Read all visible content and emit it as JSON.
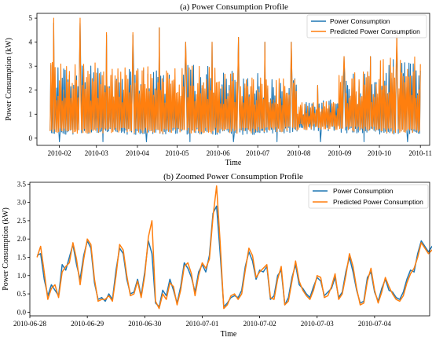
{
  "chart_data": [
    {
      "type": "line",
      "title": "(a) Power Consumption Profile",
      "xlabel": "Time",
      "ylabel": "Power Consumption (kW)",
      "x_range": [
        "2010-01-15",
        "2010-11-08"
      ],
      "ylim": [
        -0.3,
        5.2
      ],
      "yticks": [
        0,
        1,
        2,
        3,
        4,
        5
      ],
      "xticks": [
        "2010-02",
        "2010-03",
        "2010-04",
        "2010-05",
        "2010-06",
        "2010-07",
        "2010-08",
        "2010-09",
        "2010-10",
        "2010-11"
      ],
      "data_range": [
        "2010-01-25",
        "2010-11-01"
      ],
      "legend_position": "top-right",
      "grid": false,
      "series": [
        {
          "name": "Power Consumption",
          "color": "#1f77b4",
          "monthly_envelope": {
            "months": [
              "2010-02",
              "2010-03",
              "2010-04",
              "2010-05",
              "2010-06",
              "2010-07",
              "2010-08",
              "2010-09",
              "2010-10"
            ],
            "typical_min": [
              0.15,
              0.15,
              0.15,
              0.15,
              0.15,
              0.2,
              0.3,
              0.2,
              0.15
            ],
            "typical_max": [
              3.2,
              3.0,
              3.0,
              3.1,
              2.8,
              2.6,
              1.6,
              2.8,
              3.4
            ],
            "peak_max": [
              4.8,
              4.3,
              4.6,
              4.0,
              4.2,
              4.0,
              2.2,
              3.4,
              4.2
            ]
          }
        },
        {
          "name": "Predicted Power Consumption",
          "color": "#ff7f0e",
          "monthly_envelope": {
            "months": [
              "2010-02",
              "2010-03",
              "2010-04",
              "2010-05",
              "2010-06",
              "2010-07",
              "2010-08",
              "2010-09",
              "2010-10"
            ],
            "typical_min": [
              0.2,
              0.2,
              0.2,
              0.2,
              0.2,
              0.25,
              0.35,
              0.25,
              0.2
            ],
            "typical_max": [
              3.2,
              3.0,
              3.0,
              3.1,
              2.8,
              2.6,
              1.6,
              2.8,
              3.4
            ],
            "peak_max": [
              5.0,
              4.4,
              4.6,
              4.0,
              4.2,
              4.0,
              2.2,
              3.4,
              4.3
            ]
          }
        }
      ]
    },
    {
      "type": "line",
      "title": "(b) Zoomed Power Consumption Profile",
      "xlabel": "Time",
      "ylabel": "Power Consumption (kW)",
      "x_range": [
        "2010-06-28 00:00",
        "2010-07-04 23:00"
      ],
      "ylim": [
        -0.1,
        3.55
      ],
      "yticks": [
        0.0,
        0.5,
        1.0,
        1.5,
        2.0,
        2.5,
        3.0,
        3.5
      ],
      "ytick_labels": [
        "0.0",
        "0.5",
        "1.0",
        "1.5",
        "2.0",
        "2.5",
        "3.0",
        "3.5"
      ],
      "xticks": [
        "2010-06-28",
        "2010-06-29",
        "2010-06-30",
        "2010-07-01",
        "2010-07-02",
        "2010-07-03",
        "2010-07-04"
      ],
      "legend_position": "top-right",
      "grid": false,
      "x_start": "2010-06-28 03:00",
      "x_step_hours": 1.5,
      "series": [
        {
          "name": "Power Consumption",
          "color": "#1f77b4",
          "values": [
            1.55,
            1.6,
            0.9,
            0.45,
            0.75,
            0.6,
            0.45,
            1.3,
            1.15,
            1.5,
            1.85,
            1.3,
            0.9,
            1.55,
            1.95,
            1.75,
            0.8,
            0.35,
            0.4,
            0.3,
            0.5,
            0.35,
            1.15,
            1.75,
            1.6,
            0.9,
            0.5,
            0.55,
            0.9,
            0.45,
            1.1,
            1.95,
            1.6,
            0.25,
            0.15,
            0.6,
            0.45,
            0.9,
            0.6,
            0.25,
            0.7,
            1.35,
            1.2,
            0.95,
            0.55,
            1.1,
            1.3,
            1.1,
            1.55,
            2.7,
            2.9,
            1.6,
            0.15,
            0.25,
            0.4,
            0.45,
            0.4,
            0.6,
            1.25,
            1.65,
            1.4,
            0.9,
            1.15,
            1.1,
            1.25,
            0.35,
            0.45,
            1.0,
            1.15,
            0.2,
            0.4,
            0.95,
            1.3,
            0.75,
            0.65,
            0.5,
            0.4,
            0.7,
            0.95,
            0.85,
            0.45,
            0.55,
            0.65,
            0.95,
            0.4,
            0.55,
            1.1,
            1.5,
            1.1,
            0.6,
            0.25,
            0.3,
            0.95,
            1.1,
            0.55,
            0.3,
            0.65,
            0.9,
            0.6,
            0.55,
            0.4,
            0.35,
            0.55,
            0.9,
            1.15,
            1.1,
            1.6,
            1.95,
            1.8,
            1.65,
            1.8,
            1.6,
            1.65,
            1.95,
            1.55,
            1.4,
            1.55,
            1.45,
            0.5
          ]
        },
        {
          "name": "Predicted Power Consumption",
          "color": "#ff7f0e",
          "values": [
            1.5,
            1.8,
            1.1,
            0.35,
            0.65,
            0.75,
            0.4,
            1.1,
            1.25,
            1.35,
            1.9,
            1.45,
            0.75,
            1.45,
            2.0,
            1.85,
            0.9,
            0.3,
            0.35,
            0.35,
            0.45,
            0.3,
            1.0,
            1.85,
            1.7,
            1.0,
            0.45,
            0.5,
            0.85,
            0.4,
            1.0,
            2.05,
            2.5,
            0.3,
            0.1,
            0.5,
            0.35,
            0.8,
            0.7,
            0.2,
            0.6,
            1.25,
            1.35,
            1.05,
            0.45,
            1.0,
            1.35,
            1.2,
            1.45,
            2.6,
            3.45,
            1.9,
            0.1,
            0.2,
            0.45,
            0.5,
            0.35,
            0.5,
            1.15,
            1.75,
            1.55,
            0.95,
            1.1,
            1.2,
            1.3,
            0.4,
            0.35,
            0.9,
            1.25,
            0.2,
            0.3,
            0.85,
            1.4,
            0.85,
            0.6,
            0.45,
            0.35,
            0.6,
            1.0,
            0.95,
            0.4,
            0.45,
            0.7,
            1.05,
            0.35,
            0.5,
            1.0,
            1.6,
            1.25,
            0.65,
            0.2,
            0.25,
            0.85,
            1.2,
            0.6,
            0.25,
            0.55,
            0.95,
            0.7,
            0.5,
            0.35,
            0.3,
            0.45,
            0.8,
            1.05,
            1.2,
            1.5,
            1.9,
            1.75,
            1.6,
            1.7,
            1.55,
            1.75,
            2.2,
            1.65,
            1.35,
            1.6,
            1.35,
            0.4
          ]
        }
      ]
    }
  ]
}
